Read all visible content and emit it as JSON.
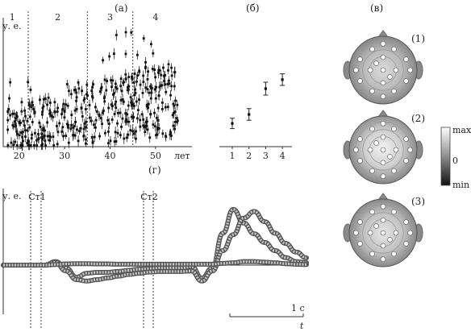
{
  "figure": {
    "panel_labels": {
      "a": "(а)",
      "b": "(б)",
      "v": "(в)",
      "g": "(г)"
    }
  },
  "chart_data": [
    {
      "panel": "(а)",
      "type": "scatter",
      "ylabel": "у. е.",
      "xlabel": "лет",
      "x_ticks": [
        20,
        30,
        40,
        50
      ],
      "xlim": [
        16.5,
        58
      ],
      "ylim": [
        0,
        1
      ],
      "boundaries": [
        22,
        35,
        45
      ],
      "group_labels": [
        "1",
        "2",
        "3",
        "4"
      ],
      "y_ticks_labeled": false,
      "error_bars": true,
      "point_count_estimate": 420
    },
    {
      "panel": "(б)",
      "type": "scatter",
      "categories": [
        "1",
        "2",
        "3",
        "4"
      ],
      "values": [
        0.18,
        0.25,
        0.45,
        0.52
      ],
      "errors": [
        0.04,
        0.045,
        0.05,
        0.045
      ],
      "ylim": [
        0,
        1
      ],
      "y_ticks_labeled": false,
      "error_bars": true
    },
    {
      "panel": "(в)",
      "type": "heatmap",
      "maps": [
        {
          "label": "(1)",
          "center_level": 0.75
        },
        {
          "label": "(2)",
          "center_level": 0.9
        },
        {
          "label": "(3)",
          "center_level": 0.85
        }
      ],
      "colorbar": {
        "max": "max",
        "mid": "0",
        "min": "min"
      },
      "electrode_count": 19
    },
    {
      "panel": "(г)",
      "type": "line",
      "ylabel": "у. е.",
      "xlabel": "t",
      "scale_bar": "1 с",
      "stimuli": [
        "Ст1",
        "Ст2"
      ],
      "series": [
        {
          "shaded_error": true,
          "values": [
            0,
            0,
            0,
            0,
            0,
            0.12,
            -0.1,
            -0.42,
            -0.28,
            -0.25,
            -0.25,
            -0.22,
            -0.18,
            -0.14,
            -0.12,
            -0.1,
            -0.1,
            -0.1,
            -0.05,
            -0.45,
            -0.1,
            1.1,
            1.92,
            1.45,
            1.08,
            0.78,
            0.5,
            0.26,
            0.12,
            0.08
          ]
        },
        {
          "shaded_error": true,
          "values": [
            0,
            0,
            0,
            0,
            0,
            0.1,
            -0.2,
            -0.5,
            -0.55,
            -0.5,
            -0.44,
            -0.38,
            -0.32,
            -0.28,
            -0.24,
            -0.22,
            -0.22,
            -0.22,
            -0.2,
            -0.55,
            -0.2,
            0.5,
            1.05,
            1.62,
            1.85,
            1.5,
            1.1,
            0.75,
            0.45,
            0.25
          ]
        },
        {
          "shaded_error": true,
          "values": [
            0,
            0,
            0,
            0,
            0,
            0.02,
            0.04,
            0.05,
            0.05,
            0.04,
            0.04,
            0.03,
            0.03,
            0.03,
            0.03,
            0.03,
            0.03,
            0.03,
            0.03,
            0.03,
            0.03,
            0.06,
            0.08,
            0.12,
            0.12,
            0.1,
            0.08,
            0.05,
            0.03,
            0.02
          ]
        }
      ]
    }
  ]
}
